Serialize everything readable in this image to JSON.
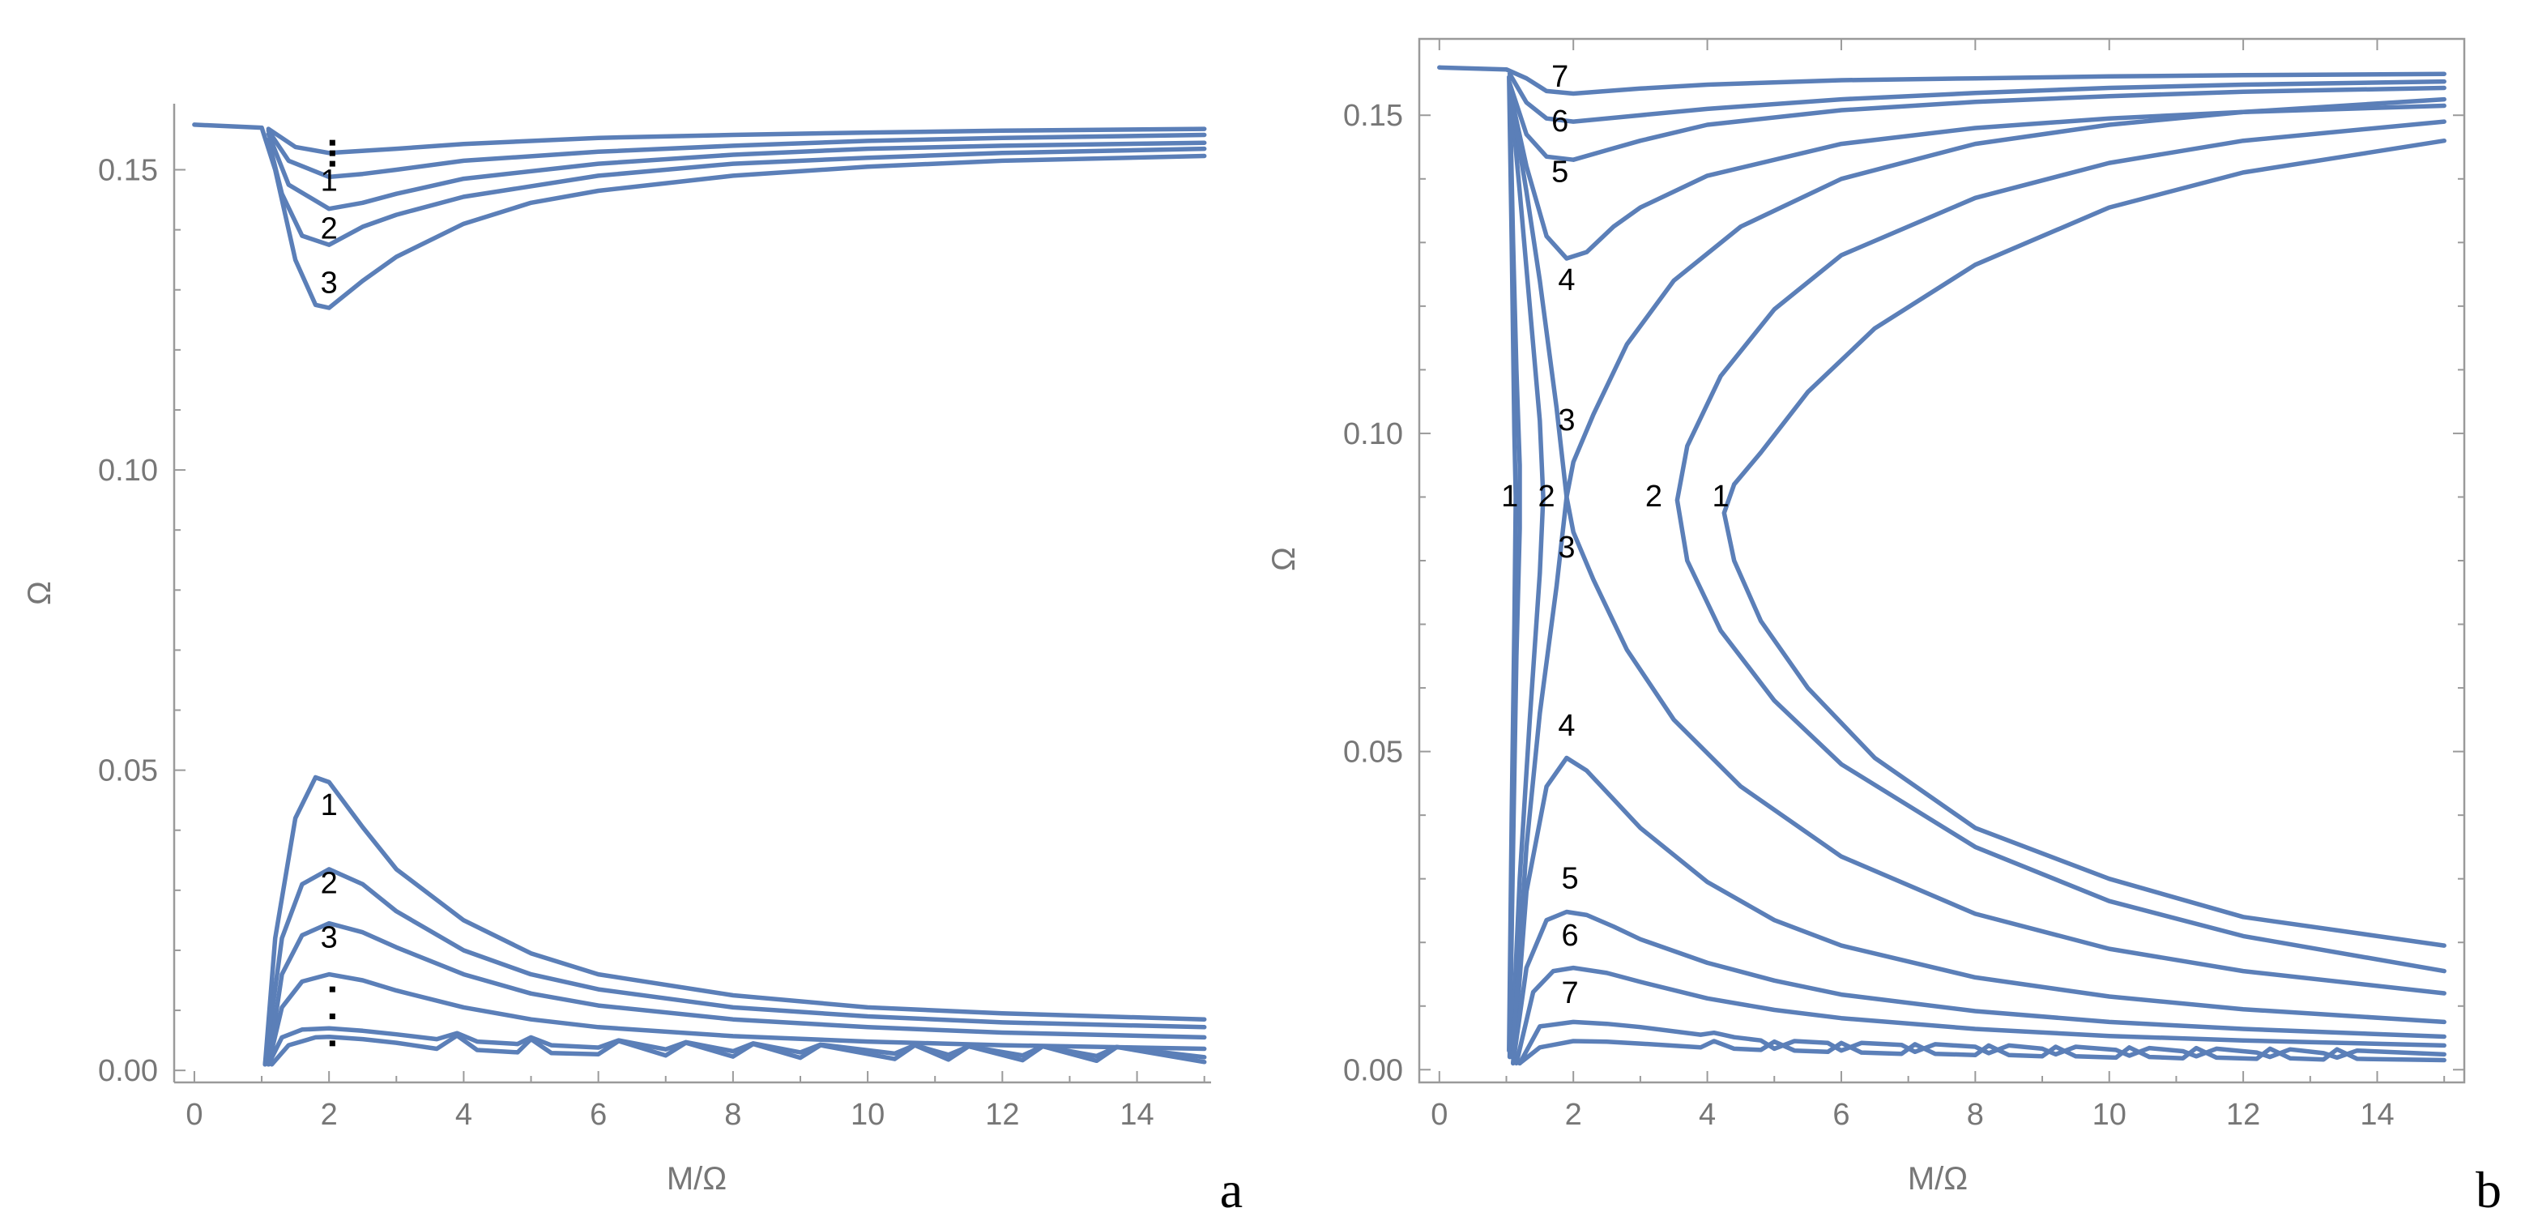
{
  "style": {
    "line_color": "#5b7fb8",
    "axis_color": "#9a9a9a",
    "tick_text_color": "#777777"
  },
  "chart_data": [
    {
      "panel": "a",
      "type": "line",
      "xlabel": "M/Ω",
      "ylabel": "Ω",
      "xlim": [
        -0.3,
        15.1
      ],
      "ylim": [
        -0.002,
        0.161
      ],
      "xticks": [
        "0",
        "2",
        "4",
        "6",
        "8",
        "10",
        "12",
        "14"
      ],
      "yticks": [
        "0.00",
        "0.05",
        "0.10",
        "0.15"
      ],
      "labels": [
        "1",
        "2",
        "3",
        "1",
        "2",
        "3"
      ],
      "series": [
        {
          "name": "upper-1",
          "x": [
            0,
            1.0,
            1.2,
            1.5,
            1.8,
            2.0,
            2.5,
            3,
            4,
            5,
            6,
            8,
            10,
            12,
            15
          ],
          "y": [
            0.1575,
            0.157,
            0.15,
            0.135,
            0.1275,
            0.127,
            0.1315,
            0.1355,
            0.141,
            0.1445,
            0.1465,
            0.149,
            0.1505,
            0.1515,
            0.1523
          ]
        },
        {
          "name": "upper-2",
          "x": [
            1.1,
            1.3,
            1.6,
            2.0,
            2.5,
            3,
            4,
            6,
            8,
            10,
            12,
            15
          ],
          "y": [
            0.155,
            0.146,
            0.139,
            0.1375,
            0.1405,
            0.1425,
            0.1455,
            0.149,
            0.151,
            0.152,
            0.1528,
            0.1535
          ]
        },
        {
          "name": "upper-3",
          "x": [
            1.1,
            1.4,
            2.0,
            2.5,
            3,
            4,
            6,
            8,
            10,
            12,
            15
          ],
          "y": [
            0.156,
            0.1475,
            0.1435,
            0.1445,
            0.146,
            0.1485,
            0.151,
            0.1525,
            0.1535,
            0.154,
            0.1545
          ]
        },
        {
          "name": "upper-4",
          "x": [
            1.1,
            1.4,
            2.0,
            2.5,
            3,
            4,
            6,
            8,
            10,
            12,
            15
          ],
          "y": [
            0.1565,
            0.1515,
            0.1488,
            0.1493,
            0.15,
            0.1515,
            0.153,
            0.154,
            0.1548,
            0.1553,
            0.1558
          ]
        },
        {
          "name": "upper-5",
          "x": [
            1.1,
            1.5,
            2.0,
            3,
            4,
            6,
            8,
            10,
            12,
            15
          ],
          "y": [
            0.1568,
            0.1538,
            0.1528,
            0.1535,
            0.1543,
            0.1553,
            0.1558,
            0.1562,
            0.1565,
            0.1568
          ]
        },
        {
          "name": "lower-1",
          "x": [
            1.05,
            1.2,
            1.5,
            1.8,
            2.0,
            2.5,
            3,
            4,
            5,
            6,
            8,
            10,
            12,
            15
          ],
          "y": [
            0.001,
            0.022,
            0.042,
            0.0488,
            0.048,
            0.0405,
            0.0335,
            0.025,
            0.0195,
            0.016,
            0.0125,
            0.0105,
            0.0095,
            0.0085
          ]
        },
        {
          "name": "lower-2",
          "x": [
            1.05,
            1.3,
            1.6,
            2.0,
            2.5,
            3,
            4,
            5,
            6,
            8,
            10,
            12,
            15
          ],
          "y": [
            0.001,
            0.022,
            0.031,
            0.0335,
            0.031,
            0.0265,
            0.02,
            0.016,
            0.0135,
            0.0105,
            0.009,
            0.008,
            0.0072
          ]
        },
        {
          "name": "lower-3",
          "x": [
            1.1,
            1.3,
            1.6,
            2.0,
            2.5,
            3,
            4,
            5,
            6,
            8,
            10,
            12,
            15
          ],
          "y": [
            0.001,
            0.016,
            0.0225,
            0.0245,
            0.023,
            0.0205,
            0.016,
            0.0128,
            0.0108,
            0.0085,
            0.0072,
            0.0063,
            0.0055
          ]
        },
        {
          "name": "lower-4",
          "x": [
            1.1,
            1.3,
            1.6,
            2.0,
            2.5,
            3,
            4,
            5,
            6,
            8,
            10,
            12,
            15
          ],
          "y": [
            0.001,
            0.0105,
            0.0148,
            0.016,
            0.015,
            0.0133,
            0.0105,
            0.0085,
            0.0072,
            0.0057,
            0.0048,
            0.0042,
            0.0036
          ]
        },
        {
          "name": "lower-5",
          "x": [
            1.1,
            1.3,
            1.6,
            2.0,
            2.5,
            3,
            3.6,
            3.9,
            4.2,
            4.8,
            5.0,
            5.3,
            6,
            6.3,
            7,
            7.3,
            8,
            8.3,
            9,
            9.3,
            10.4,
            10.7,
            11.2,
            11.5,
            12.3,
            12.6,
            13.4,
            13.7,
            15
          ],
          "y": [
            0.001,
            0.0055,
            0.0068,
            0.007,
            0.0066,
            0.006,
            0.0052,
            0.0062,
            0.0048,
            0.0044,
            0.0055,
            0.0042,
            0.0038,
            0.005,
            0.0035,
            0.0047,
            0.0032,
            0.0045,
            0.003,
            0.0043,
            0.0028,
            0.0042,
            0.0026,
            0.004,
            0.0025,
            0.004,
            0.0024,
            0.0039,
            0.0022
          ]
        },
        {
          "name": "lower-6",
          "x": [
            1.15,
            1.4,
            1.8,
            2.0,
            2.5,
            3,
            3.6,
            3.9,
            4.2,
            4.8,
            5.0,
            5.3,
            6,
            6.3,
            7,
            7.3,
            8,
            8.3,
            9,
            9.3,
            10.4,
            10.7,
            11.2,
            11.5,
            12.3,
            12.6,
            13.4,
            13.7,
            15
          ],
          "y": [
            0.001,
            0.0042,
            0.0055,
            0.0056,
            0.0052,
            0.0046,
            0.0036,
            0.0058,
            0.0034,
            0.003,
            0.0052,
            0.0029,
            0.0027,
            0.0049,
            0.0025,
            0.0046,
            0.0023,
            0.0044,
            0.0021,
            0.0042,
            0.0019,
            0.0042,
            0.0018,
            0.004,
            0.0017,
            0.004,
            0.0016,
            0.0039,
            0.0014
          ]
        }
      ]
    },
    {
      "panel": "b",
      "type": "line",
      "xlabel": "M/Ω",
      "ylabel": "Ω",
      "xlim": [
        -0.3,
        15.3
      ],
      "ylim": [
        -0.002,
        0.162
      ],
      "xticks": [
        "0",
        "2",
        "4",
        "6",
        "8",
        "10",
        "12",
        "14"
      ],
      "yticks": [
        "0.00",
        "0.05",
        "0.10",
        "0.15"
      ],
      "labels": [
        "7",
        "6",
        "5",
        "4",
        "3",
        "1",
        "2",
        "2",
        "1",
        "3",
        "4",
        "5",
        "6",
        "7"
      ],
      "series": [
        {
          "name": "U7",
          "x": [
            0,
            1.0,
            1.3,
            1.6,
            2.0,
            3,
            4,
            6,
            8,
            10,
            12,
            15
          ],
          "y": [
            0.1575,
            0.1572,
            0.1558,
            0.1538,
            0.1534,
            0.1542,
            0.1548,
            0.1555,
            0.1558,
            0.1561,
            0.1563,
            0.1565
          ]
        },
        {
          "name": "U6",
          "x": [
            1.05,
            1.3,
            1.6,
            2.0,
            3,
            4,
            6,
            8,
            10,
            12,
            15
          ],
          "y": [
            0.1565,
            0.152,
            0.1495,
            0.149,
            0.15,
            0.151,
            0.1525,
            0.1535,
            0.1543,
            0.1548,
            0.1553
          ]
        },
        {
          "name": "U5",
          "x": [
            1.05,
            1.3,
            1.6,
            2.0,
            2.5,
            3,
            4,
            6,
            8,
            10,
            12,
            15
          ],
          "y": [
            0.155,
            0.147,
            0.1435,
            0.143,
            0.1445,
            0.146,
            0.1485,
            0.1508,
            0.1521,
            0.153,
            0.1537,
            0.1543
          ]
        },
        {
          "name": "U4",
          "x": [
            1.05,
            1.3,
            1.6,
            1.9,
            2.2,
            2.6,
            3,
            4,
            6,
            8,
            10,
            12,
            15
          ],
          "y": [
            0.154,
            0.142,
            0.131,
            0.1275,
            0.1285,
            0.1325,
            0.1355,
            0.1405,
            0.1455,
            0.148,
            0.1495,
            0.1505,
            0.1515
          ]
        },
        {
          "name": "L4",
          "x": [
            1.1,
            1.3,
            1.6,
            1.9,
            2.2,
            2.6,
            3,
            4,
            5,
            6,
            8,
            10,
            12,
            15
          ],
          "y": [
            0.001,
            0.028,
            0.0445,
            0.049,
            0.047,
            0.0425,
            0.038,
            0.0295,
            0.0235,
            0.0195,
            0.0145,
            0.0115,
            0.0095,
            0.0075
          ]
        },
        {
          "name": "L5",
          "x": [
            1.1,
            1.3,
            1.6,
            1.9,
            2.2,
            2.6,
            3,
            4,
            5,
            6,
            8,
            10,
            12,
            15
          ],
          "y": [
            0.001,
            0.016,
            0.0235,
            0.0248,
            0.0243,
            0.0225,
            0.0205,
            0.0168,
            0.014,
            0.0118,
            0.0092,
            0.0075,
            0.0064,
            0.0052
          ]
        },
        {
          "name": "L6",
          "x": [
            1.15,
            1.4,
            1.7,
            2.0,
            2.5,
            3,
            4,
            5,
            6,
            8,
            10,
            12,
            15
          ],
          "y": [
            0.001,
            0.0122,
            0.0155,
            0.016,
            0.0152,
            0.0138,
            0.0112,
            0.0094,
            0.0081,
            0.0064,
            0.0053,
            0.0046,
            0.0038
          ]
        },
        {
          "name": "L7",
          "x": [
            1.2,
            1.5,
            2.0,
            2.5,
            3,
            3.9,
            4.1,
            4.4,
            4.8,
            5.0,
            5.3,
            5.8,
            6.0,
            6.3,
            6.9,
            7.1,
            7.4,
            8.0,
            8.2,
            8.5,
            9.0,
            9.2,
            9.5,
            10.1,
            10.3,
            10.6,
            11.1,
            11.3,
            11.6,
            12.2,
            12.4,
            12.7,
            13.2,
            13.4,
            13.7,
            15
          ],
          "y": [
            0.001,
            0.0068,
            0.0075,
            0.0072,
            0.0067,
            0.0055,
            0.0058,
            0.0051,
            0.0046,
            0.0033,
            0.0045,
            0.0042,
            0.003,
            0.0042,
            0.0039,
            0.0028,
            0.004,
            0.0036,
            0.0026,
            0.0038,
            0.0033,
            0.0024,
            0.0036,
            0.0031,
            0.0022,
            0.0034,
            0.0029,
            0.0021,
            0.0033,
            0.0027,
            0.002,
            0.0032,
            0.0026,
            0.0019,
            0.003,
            0.0024
          ]
        },
        {
          "name": "L8",
          "x": [
            1.2,
            1.5,
            2.0,
            2.5,
            3,
            3.9,
            4.1,
            4.4,
            4.8,
            5.0,
            5.3,
            5.8,
            6.0,
            6.3,
            6.9,
            7.1,
            7.4,
            8.0,
            8.2,
            8.5,
            9.0,
            9.2,
            9.5,
            10.1,
            10.3,
            10.6,
            11.1,
            11.3,
            11.6,
            12.2,
            12.4,
            12.7,
            13.2,
            13.4,
            13.7,
            15
          ],
          "y": [
            0.001,
            0.0035,
            0.0045,
            0.0044,
            0.0041,
            0.0035,
            0.0045,
            0.0033,
            0.0031,
            0.0044,
            0.003,
            0.0028,
            0.0042,
            0.0027,
            0.0025,
            0.004,
            0.0025,
            0.0023,
            0.0038,
            0.0023,
            0.0021,
            0.0036,
            0.0021,
            0.0019,
            0.0035,
            0.002,
            0.0018,
            0.0034,
            0.0019,
            0.0017,
            0.0033,
            0.0018,
            0.0016,
            0.0032,
            0.0017,
            0.0015
          ]
        },
        {
          "name": "C1",
          "x": [
            15,
            12,
            10,
            8,
            6.5,
            5.5,
            4.8,
            4.4,
            4.25,
            4.4,
            4.8,
            5.5,
            6.5,
            8,
            10,
            12,
            15
          ],
          "y": [
            0.146,
            0.141,
            0.1355,
            0.1265,
            0.1165,
            0.1065,
            0.097,
            0.092,
            0.0875,
            0.08,
            0.0705,
            0.06,
            0.049,
            0.038,
            0.03,
            0.024,
            0.0195
          ]
        },
        {
          "name": "C2",
          "x": [
            15,
            12,
            10,
            8,
            6,
            5,
            4.2,
            3.7,
            3.55,
            3.7,
            4.2,
            5,
            6,
            8,
            10,
            12,
            15
          ],
          "y": [
            0.149,
            0.146,
            0.1425,
            0.137,
            0.128,
            0.1195,
            0.109,
            0.098,
            0.0895,
            0.08,
            0.069,
            0.058,
            0.048,
            0.035,
            0.0265,
            0.021,
            0.0155
          ]
        },
        {
          "name": "X3",
          "x": [
            15,
            12,
            10,
            8,
            6,
            4.5,
            3.5,
            2.8,
            2.3,
            2.0,
            1.9,
            2.0,
            2.3,
            2.8,
            3.5,
            4.5,
            6,
            8,
            10,
            12,
            15
          ],
          "y": [
            0.1525,
            0.1505,
            0.1485,
            0.1455,
            0.14,
            0.1325,
            0.124,
            0.114,
            0.103,
            0.0955,
            0.09,
            0.0845,
            0.077,
            0.066,
            0.055,
            0.0445,
            0.0335,
            0.0245,
            0.019,
            0.0155,
            0.012
          ]
        },
        {
          "name": "V1",
          "x": [
            1.05,
            1.1,
            1.15,
            1.2,
            1.2,
            1.15,
            1.1,
            1.05
          ],
          "y": [
            0.155,
            0.13,
            0.11,
            0.095,
            0.085,
            0.065,
            0.035,
            0.002
          ]
        },
        {
          "name": "V2",
          "x": [
            1.05,
            1.2,
            1.35,
            1.5,
            1.55,
            1.5,
            1.35,
            1.2,
            1.08
          ],
          "y": [
            0.155,
            0.138,
            0.12,
            0.102,
            0.09,
            0.078,
            0.055,
            0.03,
            0.002
          ]
        },
        {
          "name": "V3",
          "x": [
            1.05,
            1.3,
            1.5,
            1.75,
            1.9,
            1.75,
            1.5,
            1.3,
            1.1
          ],
          "y": [
            0.154,
            0.138,
            0.124,
            0.104,
            0.09,
            0.076,
            0.056,
            0.035,
            0.003
          ]
        },
        {
          "name": "V4",
          "x": [
            1.04,
            1.08,
            1.12,
            1.14,
            1.12,
            1.08,
            1.04
          ],
          "y": [
            0.156,
            0.13,
            0.1,
            0.09,
            0.07,
            0.04,
            0.003
          ]
        }
      ]
    }
  ]
}
